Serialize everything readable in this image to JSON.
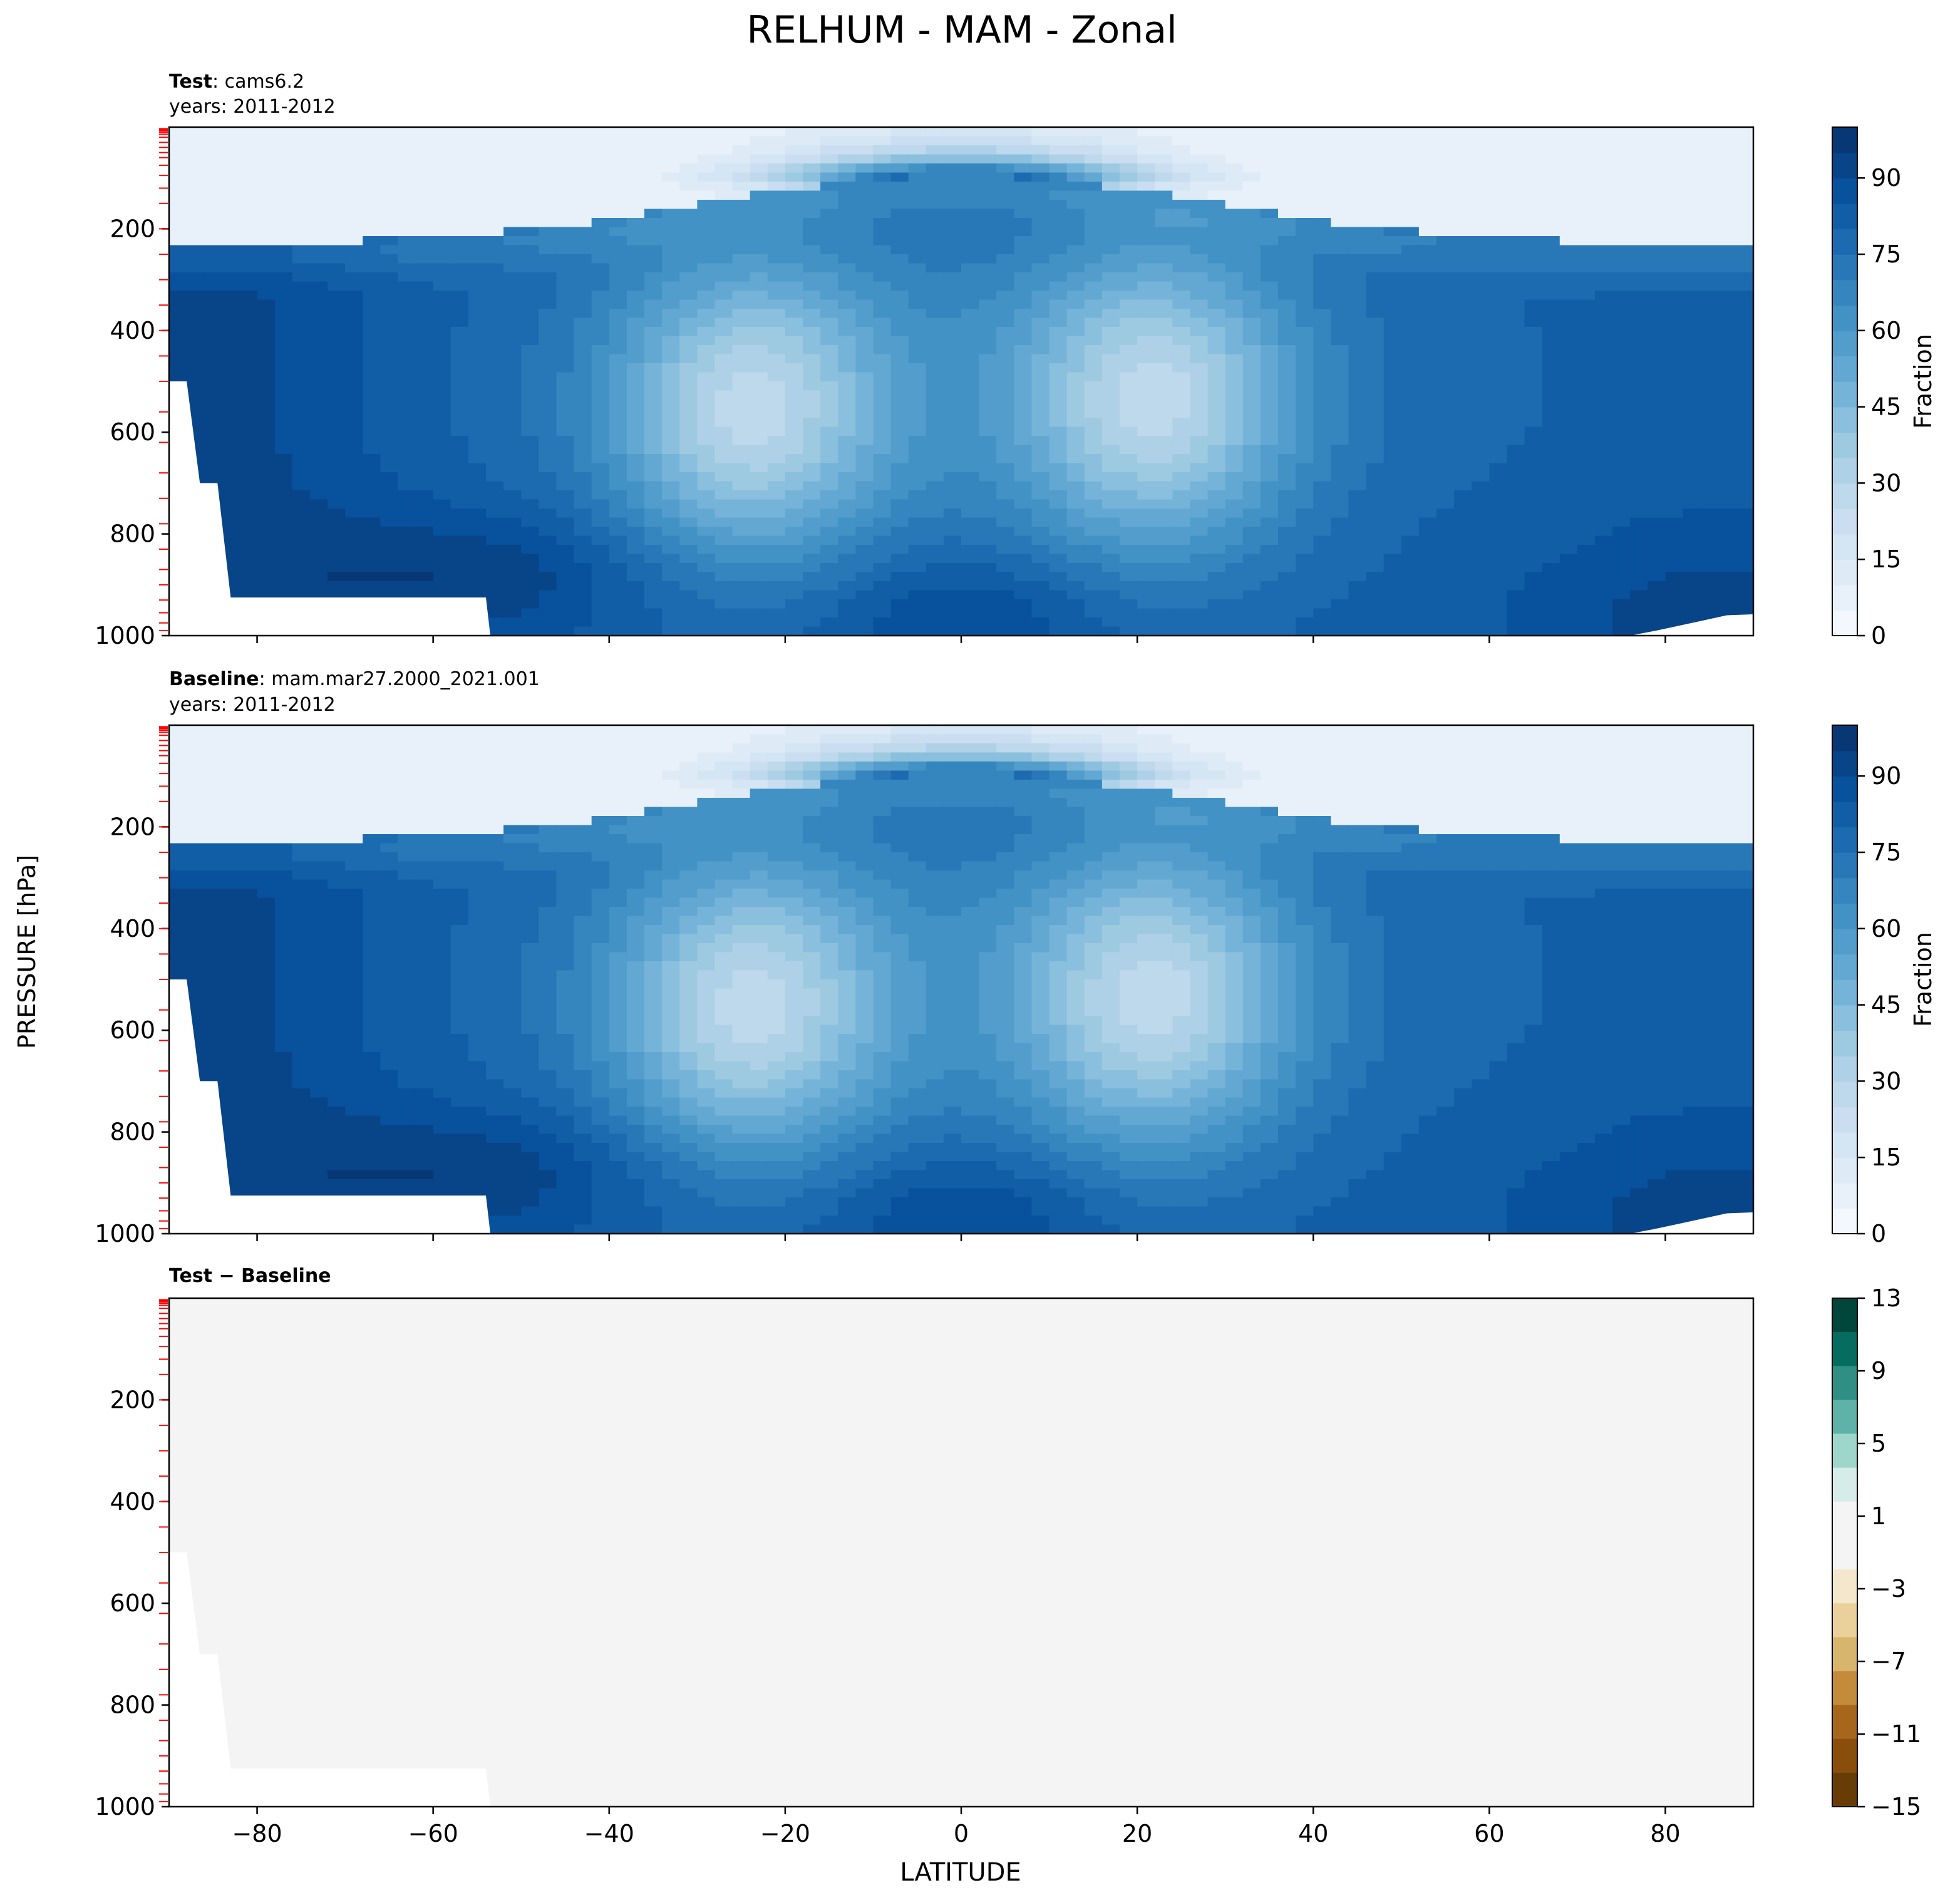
{
  "figure": {
    "title": "RELHUM - MAM - Zonal",
    "ylabel": "PRESSURE [hPa]",
    "xlabel": "LATITUDE"
  },
  "chart_data": [
    {
      "type": "heatmap",
      "label_bold": "Test",
      "label_rest": ": cams6.2",
      "subtitle": "years: 2011-2012",
      "x_range": [
        -90,
        90
      ],
      "y_range": [
        1000,
        0
      ],
      "y_ticks": [
        "200",
        "400",
        "600",
        "800",
        "1000"
      ],
      "x_ticks": [
        "−80",
        "−60",
        "−40",
        "−20",
        "0",
        "20",
        "40",
        "60",
        "80"
      ],
      "show_x_tick_labels": false,
      "colorbar": {
        "label": "Fraction",
        "colormap": "Blues",
        "range": [
          0,
          100
        ],
        "levels": 20,
        "ticks": [
          "0",
          "15",
          "30",
          "45",
          "60",
          "75",
          "90"
        ],
        "tick_values": [
          0,
          15,
          30,
          45,
          60,
          75,
          90
        ]
      }
    },
    {
      "type": "heatmap",
      "label_bold": "Baseline",
      "label_rest": ": mam.mar27.2000_2021.001",
      "subtitle": "years: 2011-2012",
      "x_range": [
        -90,
        90
      ],
      "y_range": [
        1000,
        0
      ],
      "y_ticks": [
        "200",
        "400",
        "600",
        "800",
        "1000"
      ],
      "x_ticks": [
        "−80",
        "−60",
        "−40",
        "−20",
        "0",
        "20",
        "40",
        "60",
        "80"
      ],
      "show_x_tick_labels": false,
      "colorbar": {
        "label": "Fraction",
        "colormap": "Blues",
        "range": [
          0,
          100
        ],
        "levels": 20,
        "ticks": [
          "0",
          "15",
          "30",
          "45",
          "60",
          "75",
          "90"
        ],
        "tick_values": [
          0,
          15,
          30,
          45,
          60,
          75,
          90
        ]
      }
    },
    {
      "type": "heatmap",
      "label_bold": "Test − Baseline",
      "label_rest": "",
      "subtitle": "",
      "x_range": [
        -90,
        90
      ],
      "y_range": [
        1000,
        0
      ],
      "y_ticks": [
        "200",
        "400",
        "600",
        "800",
        "1000"
      ],
      "x_ticks": [
        "−80",
        "−60",
        "−40",
        "−20",
        "0",
        "20",
        "40",
        "60",
        "80"
      ],
      "show_x_tick_labels": true,
      "difference_value": 0,
      "colorbar": {
        "label": "",
        "colormap": "BrBG",
        "range": [
          -15,
          13
        ],
        "ticks": [
          "13",
          "9",
          "5",
          "1",
          "−3",
          "−7",
          "−11",
          "−15"
        ],
        "tick_values": [
          13,
          9,
          5,
          1,
          -3,
          -7,
          -11,
          -15
        ],
        "band_colors": [
          "#00463b",
          "#066c60",
          "#2f8f84",
          "#5fb2a7",
          "#9fd6cb",
          "#d5ece8",
          "#f4f4f4",
          "#f4f4f4",
          "#f4e7cc",
          "#ead19b",
          "#d8b56d",
          "#c38b3a",
          "#a6661c",
          "#8a4e0c",
          "#673c06"
        ]
      }
    }
  ],
  "colors": {
    "missing": "#ffffff",
    "level_tick": "#ff0000",
    "difference_fill": "#f3f4f3"
  }
}
